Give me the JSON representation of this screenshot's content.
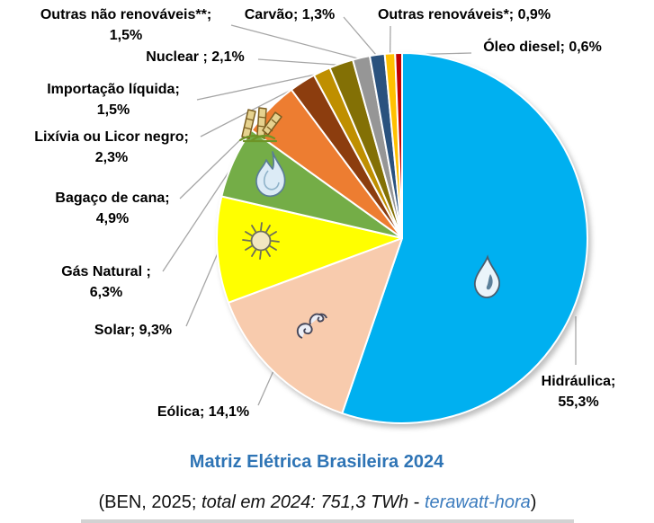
{
  "colors": {
    "title": "#2E74B5",
    "link": "#3C7CBE",
    "leader_line": "#A6A6A6",
    "label_text": "#000000",
    "background": "#FFFFFF"
  },
  "chart_data": {
    "type": "pie",
    "title": "Matriz Elétrica Brasileira 2024",
    "start_angle_deg": 0,
    "direction": "clockwise",
    "legend_position": "none",
    "labels_style": "outside-callouts-with-leader-lines",
    "values_unit": "%",
    "slices": [
      {
        "id": "hidraulica",
        "label": "Hidráulica",
        "pct": 55.3,
        "pct_label": "55,3%",
        "display": "Hidráulica;\n55,3%",
        "color": "#00B0F0",
        "icon": "water-drop-icon"
      },
      {
        "id": "eolica",
        "label": "Eólica",
        "pct": 14.1,
        "pct_label": "14,1%",
        "display": "Eólica; 14,1%",
        "color": "#F8CBAD",
        "icon": "wind-icon"
      },
      {
        "id": "solar",
        "label": "Solar",
        "pct": 9.3,
        "pct_label": "9,3%",
        "display": "Solar; 9,3%",
        "color": "#FFFF00",
        "icon": "sun-icon"
      },
      {
        "id": "gas-natural",
        "label": "Gás Natural",
        "pct": 6.3,
        "pct_label": "6,3%",
        "display": "Gás Natural ;\n6,3%",
        "color": "#74AD47",
        "icon": "flame-icon"
      },
      {
        "id": "bagaco",
        "label": "Bagaço de cana",
        "pct": 4.9,
        "pct_label": "4,9%",
        "display": "Bagaço de cana;\n4,9%",
        "color": "#ED7D31",
        "icon": "sugarcane-icon"
      },
      {
        "id": "lixivia",
        "label": "Lixívia ou Licor negro",
        "pct": 2.3,
        "pct_label": "2,3%",
        "display": "Lixívia ou Licor negro;\n2,3%",
        "color": "#8C3D0E",
        "icon": null
      },
      {
        "id": "importacao",
        "label": "Importação líquida",
        "pct": 1.5,
        "pct_label": "1,5%",
        "display": "Importação líquida;\n1,5%",
        "color": "#BF8F00",
        "icon": null
      },
      {
        "id": "nuclear",
        "label": "Nuclear",
        "pct": 2.1,
        "pct_label": "2,1%",
        "display": "Nuclear ; 2,1%",
        "color": "#837005",
        "icon": null
      },
      {
        "id": "outras-nao-renovaveis",
        "label": "Outras não renováveis**",
        "pct": 1.5,
        "pct_label": "1,5%",
        "display": "Outras não renováveis**;\n1,5%",
        "color": "#969696",
        "icon": null
      },
      {
        "id": "carvao",
        "label": "Carvão",
        "pct": 1.3,
        "pct_label": "1,3%",
        "display": "Carvão; 1,3%",
        "color": "#2A527E",
        "icon": null
      },
      {
        "id": "outras-renovaveis",
        "label": "Outras renováveis*",
        "pct": 0.9,
        "pct_label": "0,9%",
        "display": "Outras renováveis*; 0,9%",
        "color": "#FFC000",
        "icon": null
      },
      {
        "id": "oleo-diesel",
        "label": "Óleo diesel",
        "pct": 0.6,
        "pct_label": "0,6%",
        "display": "Óleo diesel; 0,6%",
        "color": "#C00000",
        "icon": null
      }
    ]
  },
  "caption": {
    "segments": [
      {
        "text": "(BEN, 2025; ",
        "style": "normal",
        "color": "#111111"
      },
      {
        "text": "total em 2024: 751,3 TWh",
        "style": "italic",
        "color": "#111111"
      },
      {
        "text": " - ",
        "style": "normal",
        "color": "#111111"
      },
      {
        "text": "terawatt-hora",
        "style": "italic",
        "color": "#3C7CBE"
      },
      {
        "text": ")",
        "style": "normal",
        "color": "#111111"
      }
    ]
  }
}
